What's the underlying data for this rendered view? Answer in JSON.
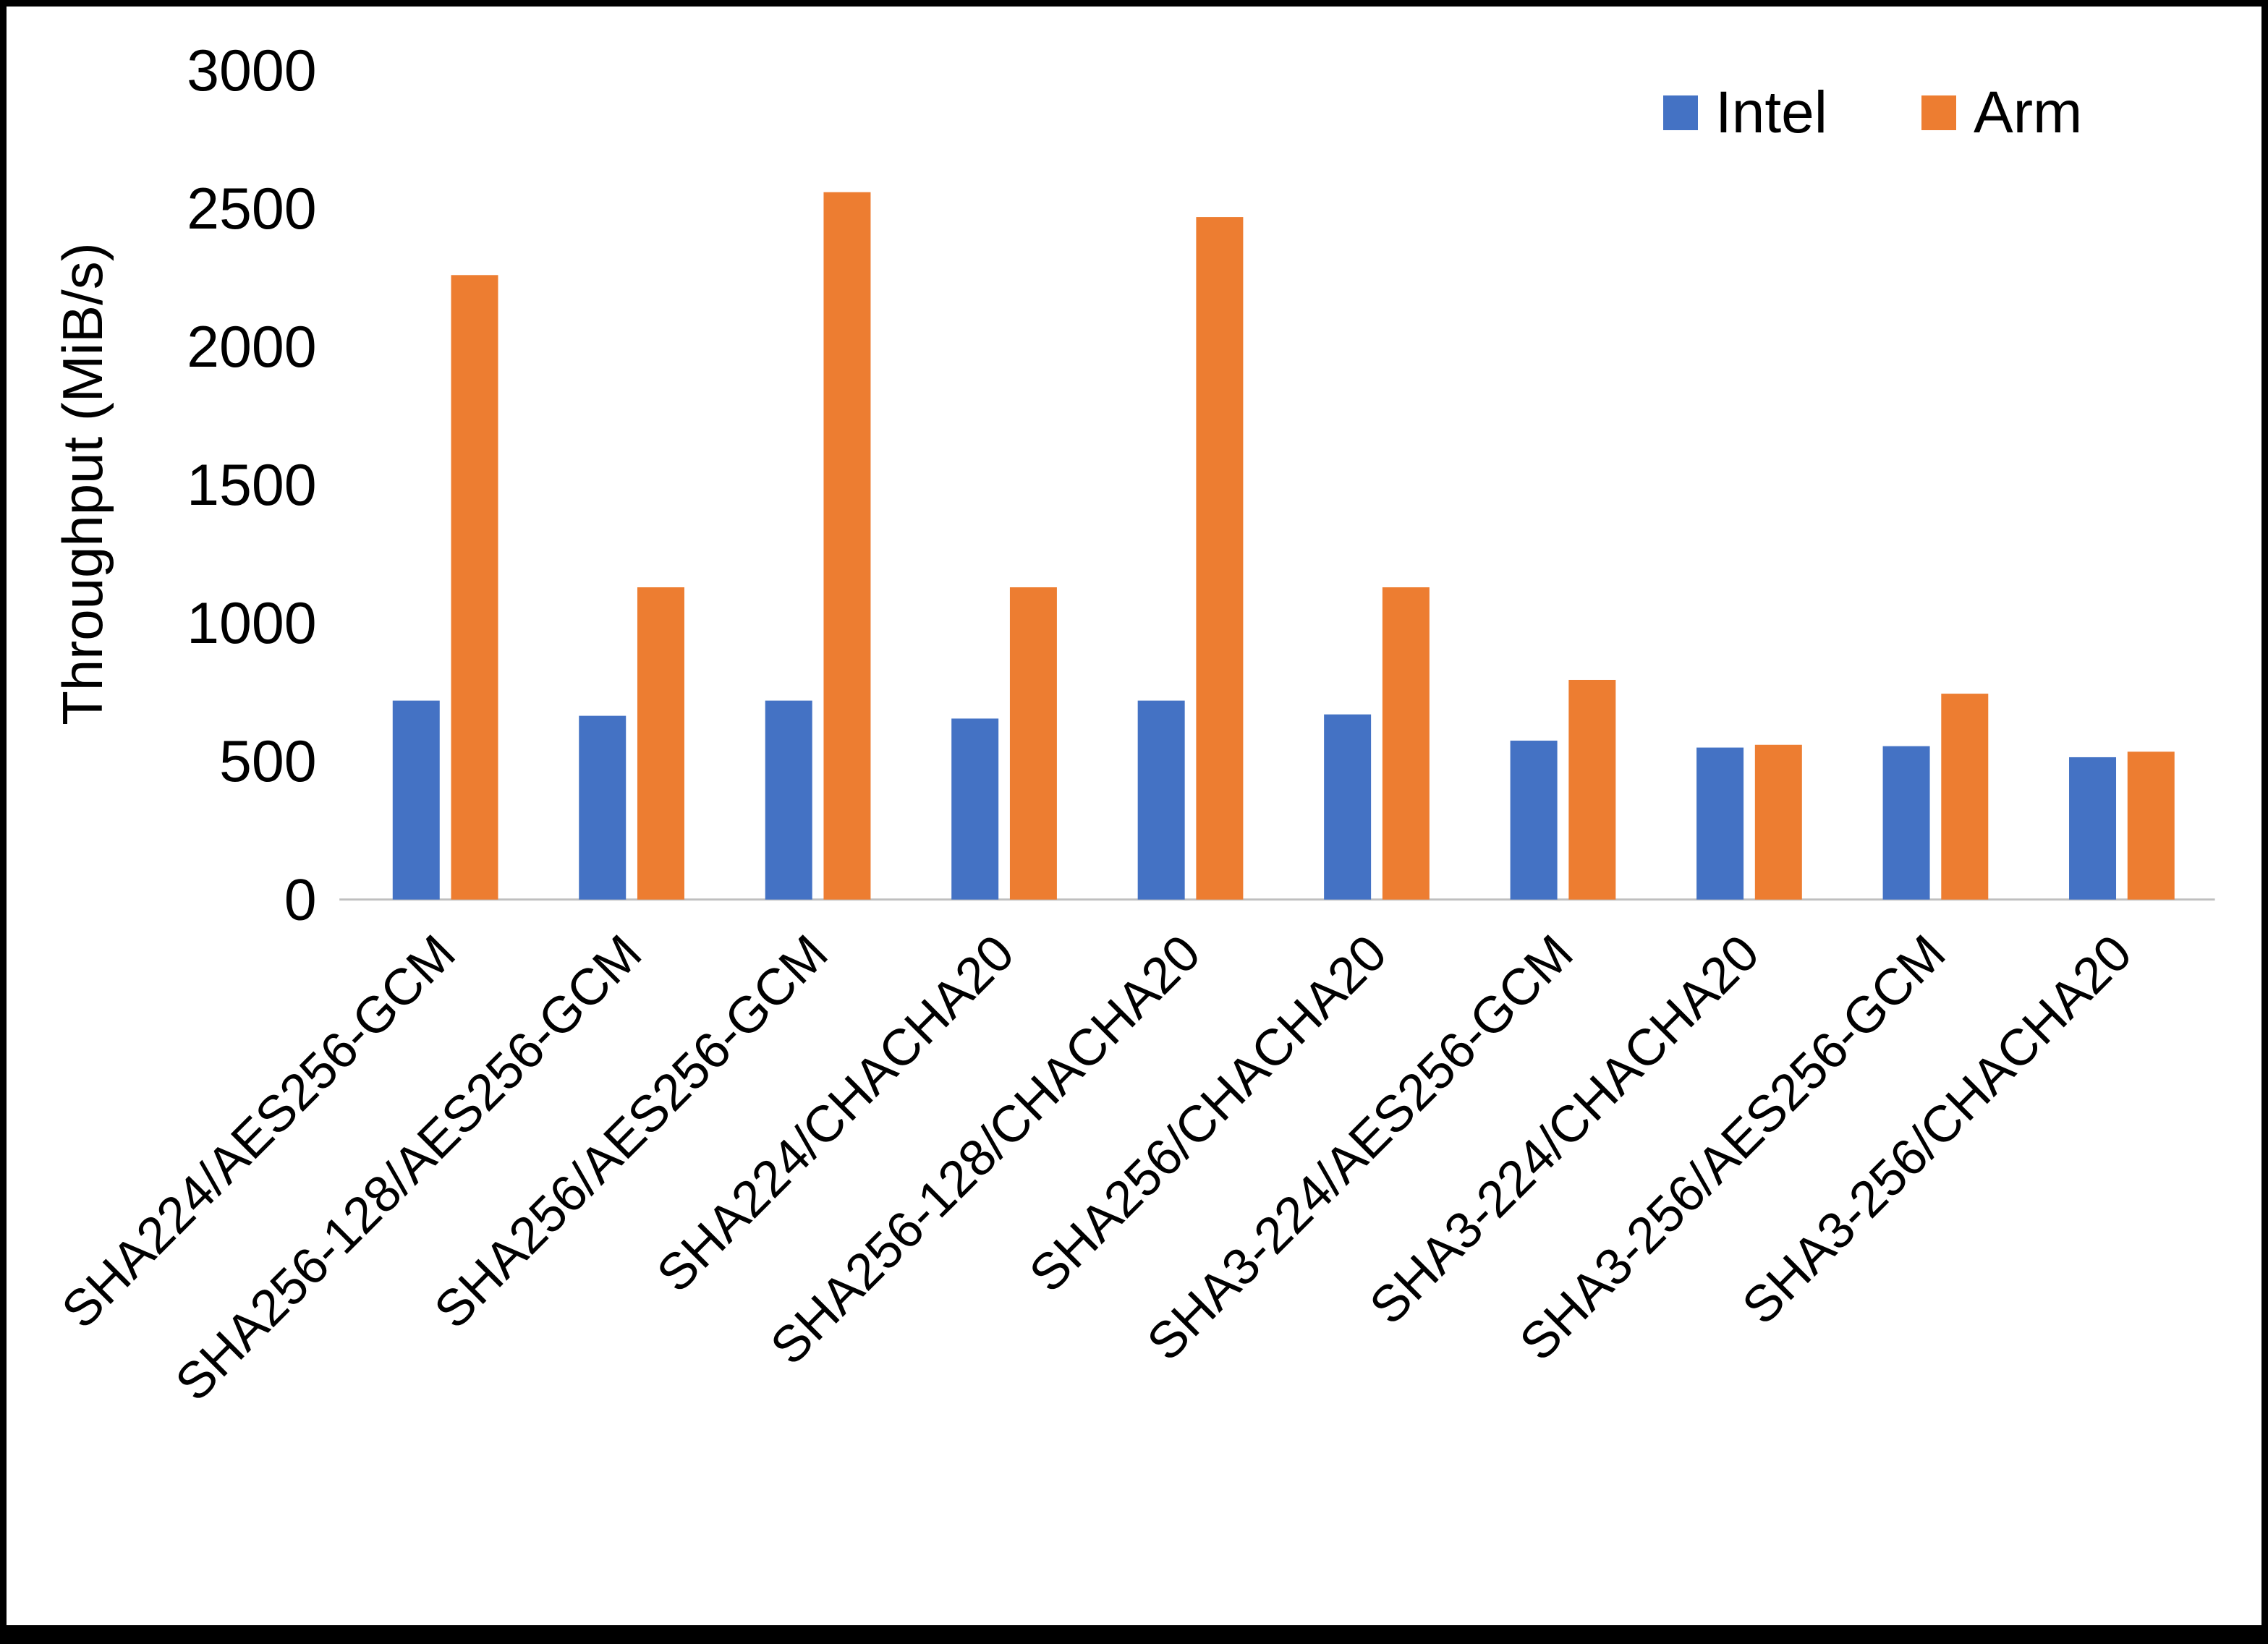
{
  "figure": {
    "background": "#FFFFFF",
    "border_color": "#000000"
  },
  "chart_data": {
    "type": "bar",
    "title": "",
    "xlabel": "",
    "ylabel": "Throughput (MiB/s)",
    "ylim": [
      0,
      3000
    ],
    "yticks": [
      0,
      500,
      1000,
      1500,
      2000,
      2500,
      3000
    ],
    "grid": false,
    "legend_position": "top-right",
    "axis_line_color": "#BFBFBF",
    "text_color": "#000000",
    "categories": [
      "SHA224/AES256-GCM",
      "SHA256-128/AES256-GCM",
      "SHA256/AES256-GCM",
      "SHA224/CHACHA20",
      "SHA256-128/CHACHA20",
      "SHA256/CHACHA20",
      "SHA3-224/AES256-GCM",
      "SHA3-224/CHACHA20",
      "SHA3-256/AES256-GCM",
      "SHA3-256/CHACHA20"
    ],
    "series": [
      {
        "name": "Intel",
        "color": "#4472C4",
        "values": [
          720,
          665,
          720,
          655,
          720,
          670,
          575,
          550,
          555,
          515
        ]
      },
      {
        "name": "Arm",
        "color": "#ED7D31",
        "values": [
          2260,
          1130,
          2560,
          1130,
          2470,
          1130,
          795,
          560,
          745,
          535
        ]
      }
    ]
  }
}
